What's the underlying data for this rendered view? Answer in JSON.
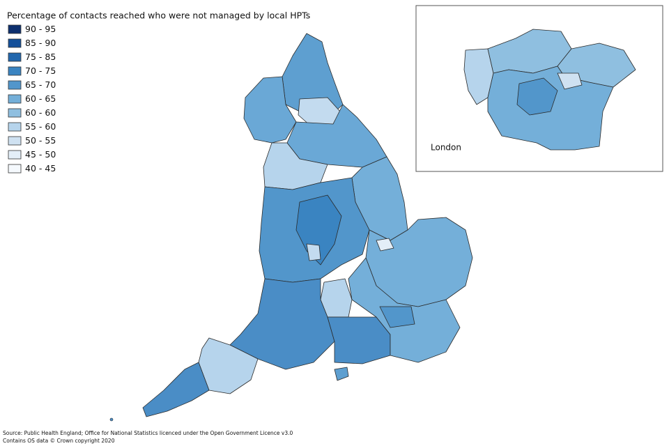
{
  "title": "Percentage of contacts reached who were not managed by local HPTs",
  "legend": [
    {
      "label": "90 - 95",
      "color": "#0d2f6e"
    },
    {
      "label": "85 - 90",
      "color": "#14509a"
    },
    {
      "label": "75 - 85",
      "color": "#2267ad"
    },
    {
      "label": "70 - 75",
      "color": "#3a84c1"
    },
    {
      "label": "65 - 70",
      "color": "#5296cb"
    },
    {
      "label": "60 - 65",
      "color": "#74afd9"
    },
    {
      "label": "60 - 60",
      "color": "#8fbfe0"
    },
    {
      "label": "55 - 60",
      "color": "#b6d4ec"
    },
    {
      "label": "50 - 55",
      "color": "#cfe1f1"
    },
    {
      "label": "45 - 50",
      "color": "#e3eef8"
    },
    {
      "label": "40 - 45",
      "color": "#f5f9fd"
    }
  ],
  "inset": {
    "label": "London"
  },
  "source": [
    "Source: Public Health England; Office for National Statistics licenced under the Open Government Licence v3.0",
    "Contains OS data © Crown copyright 2020"
  ]
}
